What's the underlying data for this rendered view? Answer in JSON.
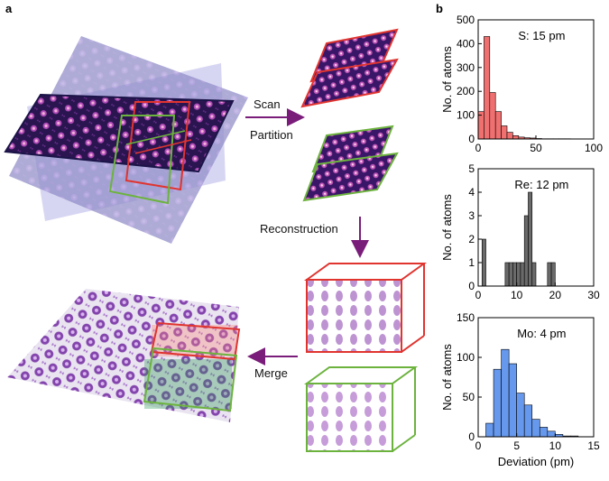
{
  "panels": {
    "a": "a",
    "b": "b"
  },
  "steps": {
    "scan": "Scan",
    "partition": "Partition",
    "reconstruction": "Reconstruction",
    "merge": "Merge"
  },
  "colors": {
    "red_box": "#e0342f",
    "green_box": "#6cb33e",
    "arrow": "#7a1d7a",
    "s_bars": "#f07070",
    "re_bars": "#6a6a6a",
    "mo_bars": "#6699ee"
  },
  "chart_data": [
    {
      "type": "bar",
      "annotation": "S: 15 pm",
      "ylabel": "No. of atoms",
      "xlabel": "",
      "xlim": [
        0,
        100
      ],
      "ylim": [
        0,
        500
      ],
      "xticks": [
        0,
        50,
        100
      ],
      "yticks": [
        0,
        100,
        200,
        300,
        400,
        500
      ],
      "bin_width": 5,
      "bins": [
        0,
        5,
        10,
        15,
        20,
        25,
        30,
        35,
        40,
        45,
        50,
        55,
        60,
        65,
        70,
        75
      ],
      "values": [
        115,
        430,
        195,
        115,
        55,
        28,
        14,
        8,
        5,
        4,
        2,
        1,
        1,
        1,
        1,
        1
      ],
      "color": "#f07070"
    },
    {
      "type": "bar",
      "annotation": "Re: 12 pm",
      "ylabel": "No. of atoms",
      "xlabel": "",
      "xlim": [
        0,
        30
      ],
      "ylim": [
        0,
        5
      ],
      "xticks": [
        0,
        10,
        20,
        30
      ],
      "yticks": [
        0,
        1,
        2,
        3,
        4,
        5
      ],
      "bin_width": 1,
      "bins": [
        1,
        2,
        3,
        4,
        5,
        6,
        7,
        8,
        9,
        10,
        11,
        12,
        13,
        14,
        15,
        16,
        17,
        18,
        19,
        20
      ],
      "values": [
        2,
        0,
        0,
        0,
        0,
        0,
        1,
        1,
        1,
        1,
        1,
        3,
        4,
        1,
        0,
        0,
        0,
        1,
        1,
        0
      ],
      "color": "#6a6a6a"
    },
    {
      "type": "bar",
      "annotation": "Mo: 4 pm",
      "ylabel": "No. of atoms",
      "xlabel": "Deviation (pm)",
      "xlim": [
        0,
        15
      ],
      "ylim": [
        0,
        150
      ],
      "xticks": [
        0,
        5,
        10,
        15
      ],
      "yticks": [
        0,
        50,
        100,
        150
      ],
      "bin_width": 1,
      "bins": [
        1,
        2,
        3,
        4,
        5,
        6,
        7,
        8,
        9,
        10,
        11,
        12
      ],
      "values": [
        17,
        85,
        110,
        92,
        55,
        40,
        22,
        12,
        7,
        3,
        1,
        1
      ],
      "color": "#6699ee"
    }
  ]
}
